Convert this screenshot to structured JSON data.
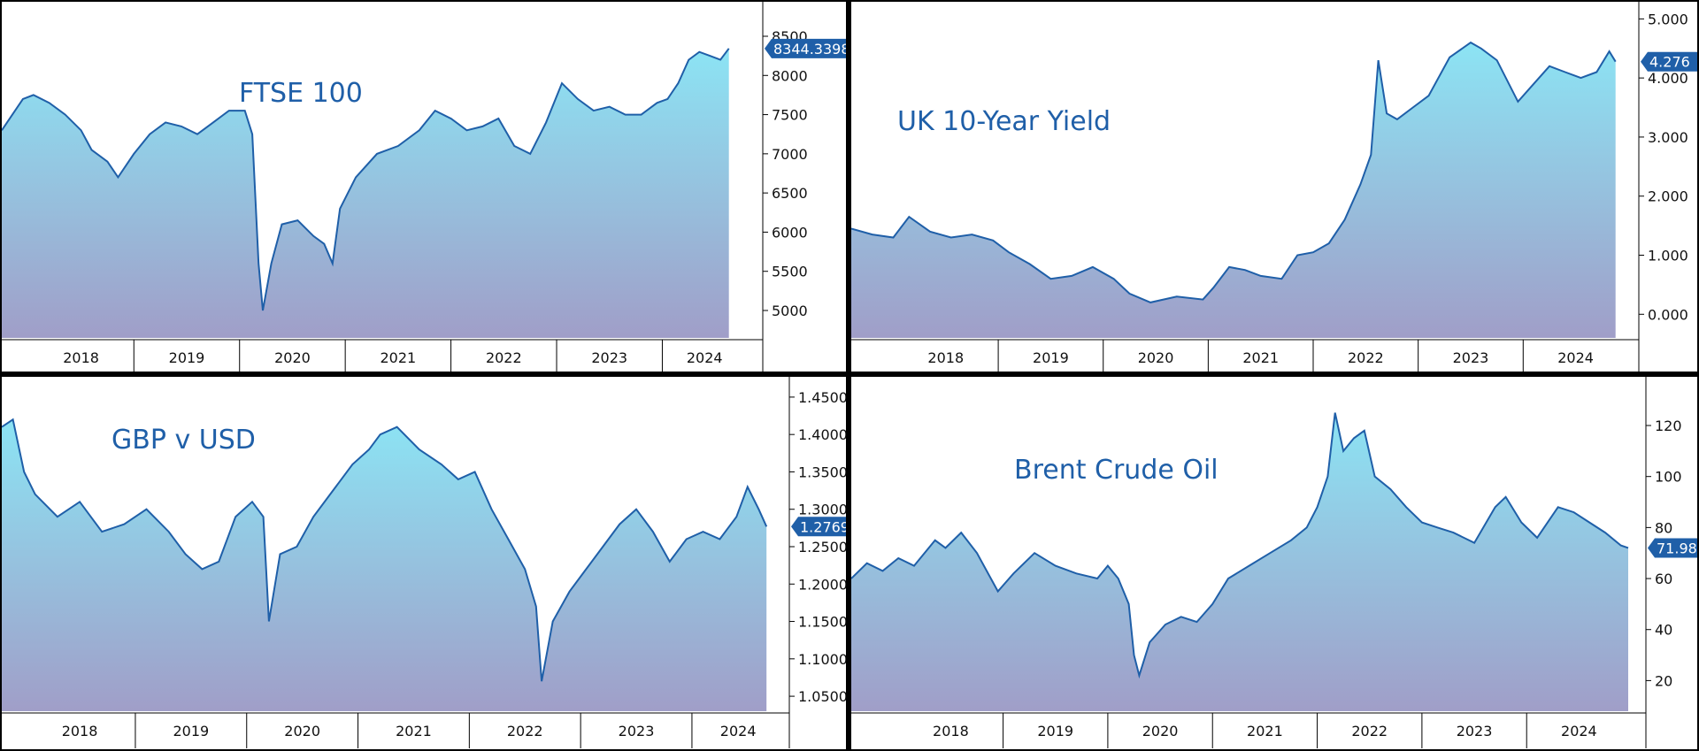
{
  "colors": {
    "line": "#1f5fa8",
    "fill_top": "#8ce4f4",
    "fill_bottom": "#a09ec8",
    "last_badge": "#1f5fa8",
    "frame": "#000000"
  },
  "x_labels": [
    "2018",
    "2019",
    "2020",
    "2021",
    "2022",
    "2023",
    "2024"
  ],
  "chart_data": [
    {
      "type": "area",
      "title": "FTSE 100",
      "last_value": "8344.3398",
      "y_ticks": [
        "5000",
        "5500",
        "6000",
        "6500",
        "7000",
        "7500",
        "8000",
        "8500"
      ],
      "ylim": [
        4650,
        8850
      ],
      "xlim": [
        2017.75,
        2024.8
      ],
      "grid": false,
      "x": [
        2017.75,
        2017.95,
        2018.05,
        2018.2,
        2018.35,
        2018.5,
        2018.6,
        2018.75,
        2018.85,
        2019.0,
        2019.15,
        2019.3,
        2019.45,
        2019.6,
        2019.75,
        2019.9,
        2020.05,
        2020.12,
        2020.18,
        2020.22,
        2020.3,
        2020.4,
        2020.55,
        2020.7,
        2020.8,
        2020.88,
        2020.95,
        2021.1,
        2021.3,
        2021.5,
        2021.7,
        2021.85,
        2022.0,
        2022.15,
        2022.3,
        2022.45,
        2022.6,
        2022.75,
        2022.9,
        2023.05,
        2023.2,
        2023.35,
        2023.5,
        2023.65,
        2023.8,
        2023.95,
        2024.05,
        2024.15,
        2024.25,
        2024.35,
        2024.45,
        2024.55,
        2024.63
      ],
      "y": [
        7300,
        7700,
        7750,
        7650,
        7500,
        7300,
        7050,
        6900,
        6700,
        7000,
        7250,
        7400,
        7350,
        7250,
        7400,
        7550,
        7550,
        7250,
        5600,
        5000,
        5600,
        6100,
        6150,
        5950,
        5850,
        5600,
        6300,
        6700,
        7000,
        7100,
        7300,
        7550,
        7450,
        7300,
        7350,
        7450,
        7100,
        7000,
        7400,
        7900,
        7700,
        7550,
        7600,
        7500,
        7500,
        7650,
        7700,
        7900,
        8200,
        8300,
        8250,
        8200,
        8344
      ]
    },
    {
      "type": "area",
      "title": "UK 10-Year Yield",
      "last_value": "4.276",
      "y_ticks": [
        "0.000",
        "1.000",
        "2.000",
        "3.000",
        "4.000",
        "5.000"
      ],
      "ylim": [
        -0.4,
        5.2
      ],
      "xlim": [
        2017.6,
        2024.95
      ],
      "grid": false,
      "x": [
        2017.6,
        2017.8,
        2018.0,
        2018.15,
        2018.35,
        2018.55,
        2018.75,
        2018.95,
        2019.1,
        2019.3,
        2019.5,
        2019.7,
        2019.9,
        2020.1,
        2020.25,
        2020.45,
        2020.7,
        2020.95,
        2021.05,
        2021.2,
        2021.35,
        2021.5,
        2021.7,
        2021.85,
        2022.0,
        2022.15,
        2022.3,
        2022.45,
        2022.55,
        2022.62,
        2022.7,
        2022.8,
        2022.95,
        2023.1,
        2023.3,
        2023.5,
        2023.6,
        2023.75,
        2023.95,
        2024.1,
        2024.25,
        2024.4,
        2024.55,
        2024.7,
        2024.82,
        2024.88
      ],
      "y": [
        1.45,
        1.35,
        1.3,
        1.65,
        1.4,
        1.3,
        1.35,
        1.25,
        1.05,
        0.85,
        0.6,
        0.65,
        0.8,
        0.6,
        0.35,
        0.2,
        0.3,
        0.25,
        0.45,
        0.8,
        0.75,
        0.65,
        0.6,
        1.0,
        1.05,
        1.2,
        1.6,
        2.2,
        2.7,
        4.3,
        3.4,
        3.3,
        3.5,
        3.7,
        4.35,
        4.6,
        4.5,
        4.3,
        3.6,
        3.9,
        4.2,
        4.1,
        4.0,
        4.1,
        4.45,
        4.276
      ]
    },
    {
      "type": "area",
      "title": "GBP v USD",
      "last_value": "1.2769",
      "y_ticks": [
        "1.0500",
        "1.1000",
        "1.1500",
        "1.2000",
        "1.2500",
        "1.3000",
        "1.3500",
        "1.4000",
        "1.4500"
      ],
      "ylim": [
        1.03,
        1.47
      ],
      "xlim": [
        2017.8,
        2024.7
      ],
      "grid": false,
      "x": [
        2017.8,
        2017.9,
        2018.0,
        2018.1,
        2018.3,
        2018.5,
        2018.7,
        2018.9,
        2019.1,
        2019.3,
        2019.45,
        2019.6,
        2019.75,
        2019.9,
        2020.05,
        2020.15,
        2020.2,
        2020.3,
        2020.45,
        2020.6,
        2020.8,
        2020.95,
        2021.1,
        2021.2,
        2021.35,
        2021.55,
        2021.75,
        2021.9,
        2022.05,
        2022.2,
        2022.35,
        2022.5,
        2022.6,
        2022.65,
        2022.75,
        2022.9,
        2023.05,
        2023.2,
        2023.35,
        2023.5,
        2023.65,
        2023.8,
        2023.95,
        2024.1,
        2024.25,
        2024.4,
        2024.5,
        2024.6,
        2024.67
      ],
      "y": [
        1.41,
        1.42,
        1.35,
        1.32,
        1.29,
        1.31,
        1.27,
        1.28,
        1.3,
        1.27,
        1.24,
        1.22,
        1.23,
        1.29,
        1.31,
        1.29,
        1.15,
        1.24,
        1.25,
        1.29,
        1.33,
        1.36,
        1.38,
        1.4,
        1.41,
        1.38,
        1.36,
        1.34,
        1.35,
        1.3,
        1.26,
        1.22,
        1.17,
        1.07,
        1.15,
        1.19,
        1.22,
        1.25,
        1.28,
        1.3,
        1.27,
        1.23,
        1.26,
        1.27,
        1.26,
        1.29,
        1.33,
        1.3,
        1.2769
      ]
    },
    {
      "type": "area",
      "title": "Brent Crude Oil",
      "last_value": "71.98",
      "y_ticks": [
        "20",
        "40",
        "60",
        "80",
        "100",
        "120"
      ],
      "ylim": [
        8,
        137
      ],
      "xlim": [
        2017.55,
        2024.97
      ],
      "grid": false,
      "x": [
        2017.55,
        2017.7,
        2017.85,
        2018.0,
        2018.15,
        2018.35,
        2018.45,
        2018.6,
        2018.75,
        2018.95,
        2019.1,
        2019.3,
        2019.5,
        2019.7,
        2019.9,
        2020.0,
        2020.1,
        2020.2,
        2020.25,
        2020.3,
        2020.4,
        2020.55,
        2020.7,
        2020.85,
        2021.0,
        2021.15,
        2021.35,
        2021.55,
        2021.75,
        2021.9,
        2022.0,
        2022.1,
        2022.17,
        2022.25,
        2022.35,
        2022.45,
        2022.55,
        2022.7,
        2022.85,
        2023.0,
        2023.15,
        2023.3,
        2023.5,
        2023.7,
        2023.8,
        2023.95,
        2024.1,
        2024.3,
        2024.45,
        2024.6,
        2024.75,
        2024.9,
        2024.97
      ],
      "y": [
        60,
        66,
        63,
        68,
        65,
        75,
        72,
        78,
        70,
        55,
        62,
        70,
        65,
        62,
        60,
        65,
        60,
        50,
        30,
        22,
        35,
        42,
        45,
        43,
        50,
        60,
        65,
        70,
        75,
        80,
        88,
        100,
        125,
        110,
        115,
        118,
        100,
        95,
        88,
        82,
        80,
        78,
        74,
        88,
        92,
        82,
        76,
        88,
        86,
        82,
        78,
        73,
        72
      ]
    }
  ]
}
